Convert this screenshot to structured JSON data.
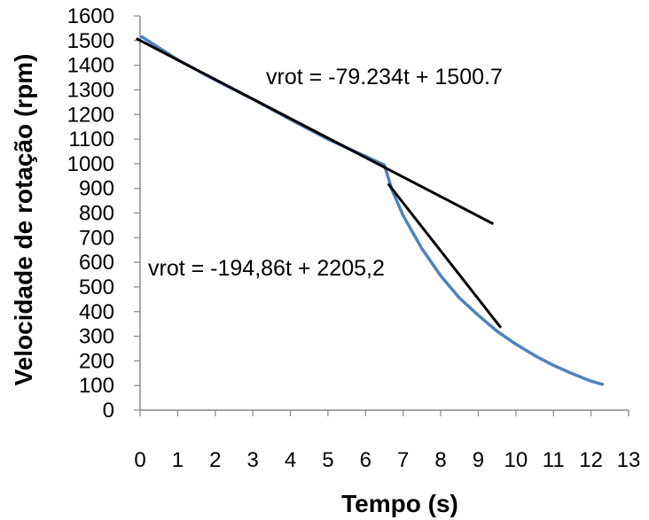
{
  "chart_data": {
    "type": "line",
    "xlabel": "Tempo (s)",
    "ylabel": "Velocidade de rotação (rpm)",
    "xlim": [
      0,
      13
    ],
    "ylim": [
      0,
      1600
    ],
    "x_ticks": [
      "0",
      "1",
      "2",
      "3",
      "4",
      "5",
      "6",
      "7",
      "8",
      "9",
      "10",
      "11",
      "12",
      "13"
    ],
    "y_ticks": [
      "0",
      "100",
      "200",
      "300",
      "400",
      "500",
      "600",
      "700",
      "800",
      "900",
      "1000",
      "1100",
      "1200",
      "1300",
      "1400",
      "1500",
      "1600"
    ],
    "grid": false,
    "series": [
      {
        "color": "#4f81bd",
        "x": [
          0.05,
          1,
          2,
          3,
          4,
          5,
          6,
          6.5,
          6.7,
          7.0,
          7.5,
          8.0,
          8.5,
          9.0,
          9.5,
          10.0,
          10.5,
          11.0,
          11.5,
          12.0,
          12.3
        ],
        "y": [
          1515,
          1422,
          1340,
          1262,
          1180,
          1100,
          1030,
          995,
          895,
          790,
          655,
          545,
          455,
          385,
          320,
          268,
          222,
          182,
          148,
          118,
          105
        ]
      }
    ],
    "trendlines": [
      {
        "label": "vrot = -79.234t + 1500.7",
        "slope": -79.234,
        "intercept": 1500.7,
        "x_range": [
          -0.1,
          9.4
        ],
        "color": "#000000"
      },
      {
        "label": "vrot = -194,86t + 2205,2",
        "slope": -194.86,
        "intercept": 2205.2,
        "x_range": [
          6.6,
          9.6
        ],
        "color": "#000000"
      }
    ]
  }
}
